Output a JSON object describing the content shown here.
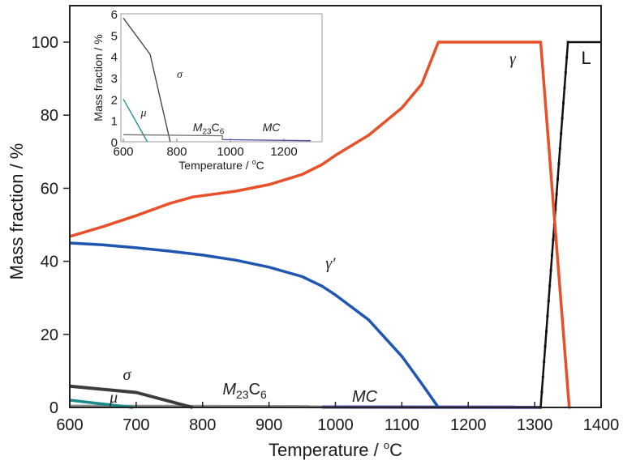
{
  "chart_data": [
    {
      "type": "line",
      "title": "",
      "xlabel": "Temperature / °C",
      "ylabel": "Mass fraction / %",
      "xlim": [
        600,
        1400
      ],
      "ylim": [
        0,
        110
      ],
      "xticks": [
        600,
        700,
        800,
        900,
        1000,
        1100,
        1200,
        1300,
        1400
      ],
      "yticks": [
        0,
        20,
        40,
        60,
        80,
        100
      ],
      "grid": false,
      "legend": "none (direct labels)",
      "series": [
        {
          "name": "γ",
          "color": "#e8502a",
          "x": [
            600,
            650,
            700,
            750,
            785,
            850,
            900,
            950,
            980,
            1000,
            1050,
            1100,
            1130,
            1155,
            1309,
            1352
          ],
          "y": [
            46.8,
            49.5,
            52.5,
            55.8,
            57.6,
            59.2,
            61.0,
            63.8,
            66.5,
            69.0,
            74.5,
            82.0,
            88.5,
            100,
            100,
            0
          ]
        },
        {
          "name": "γ'",
          "color": "#1f56b0",
          "x": [
            600,
            650,
            700,
            750,
            800,
            850,
            900,
            950,
            980,
            1000,
            1050,
            1100,
            1130,
            1155
          ],
          "y": [
            45.0,
            44.5,
            43.7,
            42.8,
            41.7,
            40.3,
            38.4,
            35.8,
            33.2,
            30.8,
            24.0,
            14.0,
            6.5,
            0
          ]
        },
        {
          "name": "L",
          "color": "#111111",
          "x": [
            1309,
            1350,
            1400
          ],
          "y": [
            0,
            100,
            100
          ]
        },
        {
          "name": "σ",
          "color": "#3c3c3c",
          "x": [
            600,
            700,
            785
          ],
          "y": [
            5.8,
            4.1,
            0
          ]
        },
        {
          "name": "μ",
          "color": "#1a8a8a",
          "x": [
            600,
            695
          ],
          "y": [
            2.0,
            0
          ]
        },
        {
          "name": "M23C6",
          "color": "#8a8a8a",
          "x": [
            600,
            980
          ],
          "y": [
            0.3,
            0.2
          ]
        },
        {
          "name": "MC",
          "color": "#4a4aa0",
          "x": [
            980,
            1309
          ],
          "y": [
            0.1,
            0.05
          ]
        }
      ],
      "annotations": [
        {
          "text": "γ",
          "x": 1262,
          "y": 94
        },
        {
          "text": "L",
          "x": 1370,
          "y": 94
        },
        {
          "text": "γ′",
          "x": 985,
          "y": 38
        },
        {
          "text": "σ",
          "x": 680,
          "y": 7.5
        },
        {
          "text": "μ",
          "x": 660,
          "y": 1.3
        },
        {
          "text": "M23C6",
          "x": 830,
          "y": 3.5
        },
        {
          "text": "MC",
          "x": 1025,
          "y": 1.5
        }
      ]
    },
    {
      "type": "line",
      "title": "inset",
      "xlabel": "Temperature / °C",
      "ylabel": "Mass fraction / %",
      "xlim": [
        590,
        1340
      ],
      "ylim": [
        0,
        6
      ],
      "xticks": [
        600,
        800,
        1000,
        1200
      ],
      "yticks": [
        0,
        1,
        2,
        3,
        4,
        5,
        6
      ],
      "grid": false,
      "series": [
        {
          "name": "σ",
          "color": "#3c3c3c",
          "x": [
            600,
            700,
            775
          ],
          "y": [
            5.8,
            4.1,
            0
          ]
        },
        {
          "name": "μ",
          "color": "#1a8a8a",
          "x": [
            600,
            690
          ],
          "y": [
            2.0,
            0
          ]
        },
        {
          "name": "M23C6",
          "color": "#6e6e6e",
          "x": [
            600,
            970,
            970
          ],
          "y": [
            0.33,
            0.28,
            0.1
          ]
        },
        {
          "name": "MC",
          "color": "#4a4aa0",
          "x": [
            970,
            1300
          ],
          "y": [
            0.1,
            0.05
          ]
        }
      ],
      "annotations": [
        {
          "text": "σ",
          "x": 800,
          "y": 3.0
        },
        {
          "text": "μ",
          "x": 665,
          "y": 1.2
        },
        {
          "text": "M23C6",
          "x": 860,
          "y": 0.5
        },
        {
          "text": "MC",
          "x": 1120,
          "y": 0.5
        }
      ]
    }
  ]
}
